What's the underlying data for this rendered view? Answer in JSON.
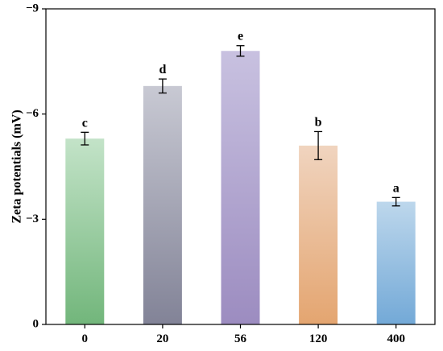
{
  "chart_data": {
    "type": "bar",
    "xlabel": "",
    "ylabel": "Zeta potentials (mV)",
    "ylim": [
      0,
      -9
    ],
    "yticks": [
      {
        "value": 0,
        "label": "0"
      },
      {
        "value": -3,
        "label": "−3"
      },
      {
        "value": -6,
        "label": "−6"
      },
      {
        "value": -9,
        "label": "−9"
      }
    ],
    "categories": [
      "0",
      "20",
      "56",
      "120",
      "400"
    ],
    "values": [
      -5.3,
      -6.8,
      -7.8,
      -5.1,
      -3.5
    ],
    "errors": [
      0.18,
      0.2,
      0.15,
      0.4,
      0.12
    ],
    "significance": [
      "c",
      "d",
      "e",
      "b",
      "a"
    ],
    "gradients": [
      {
        "top": "#c3e3c8",
        "bottom": "#72b67b"
      },
      {
        "top": "#c8c9d3",
        "bottom": "#828397"
      },
      {
        "top": "#c8c1e0",
        "bottom": "#9c8cc0"
      },
      {
        "top": "#f0d4bf",
        "bottom": "#e4a570"
      },
      {
        "top": "#bdd7ec",
        "bottom": "#73a9d7"
      }
    ]
  }
}
